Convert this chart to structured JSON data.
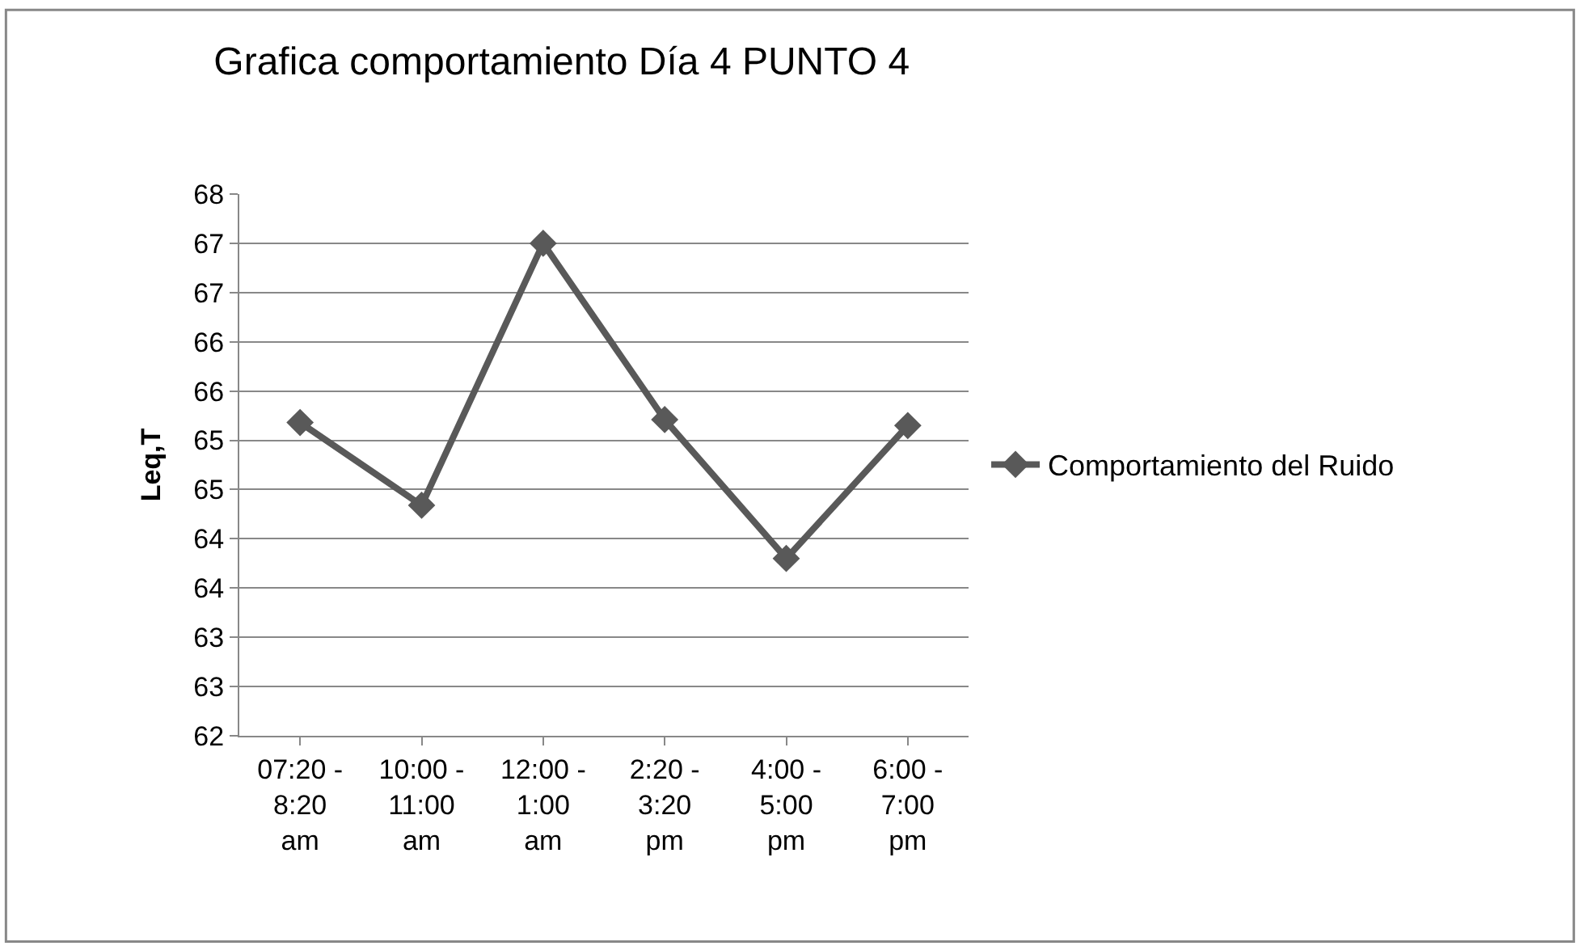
{
  "chart_data": {
    "type": "line",
    "title": "Grafica comportamiento Día 4 PUNTO 4",
    "ylabel": "Leq,T",
    "categories": [
      "07:20 - 8:20 am",
      "10:00 - 11:00 am",
      "12:00 - 1:00 am",
      "2:20 - 3:20 pm",
      "4:00 - 5:00 pm",
      "6:00 - 7:00 pm"
    ],
    "series": [
      {
        "name": "Comportamiento del Ruido",
        "color": "#595959",
        "values": [
          65.18,
          64.34,
          67.0,
          65.21,
          63.8,
          65.15
        ]
      }
    ],
    "ylim": [
      62,
      67.5
    ],
    "yticks": [
      62,
      {
        "value": 62.5,
        "label": "63"
      },
      63,
      {
        "value": 63.5,
        "label": "64"
      },
      64,
      {
        "value": 64.5,
        "label": "65"
      },
      65,
      {
        "value": 65.5,
        "label": "66"
      },
      66,
      {
        "value": 66.5,
        "label": "67"
      },
      67,
      {
        "value": 67.5,
        "label": "68"
      }
    ],
    "grid": "y",
    "legend": "right",
    "marker": "diamond",
    "line_style": "solid"
  }
}
